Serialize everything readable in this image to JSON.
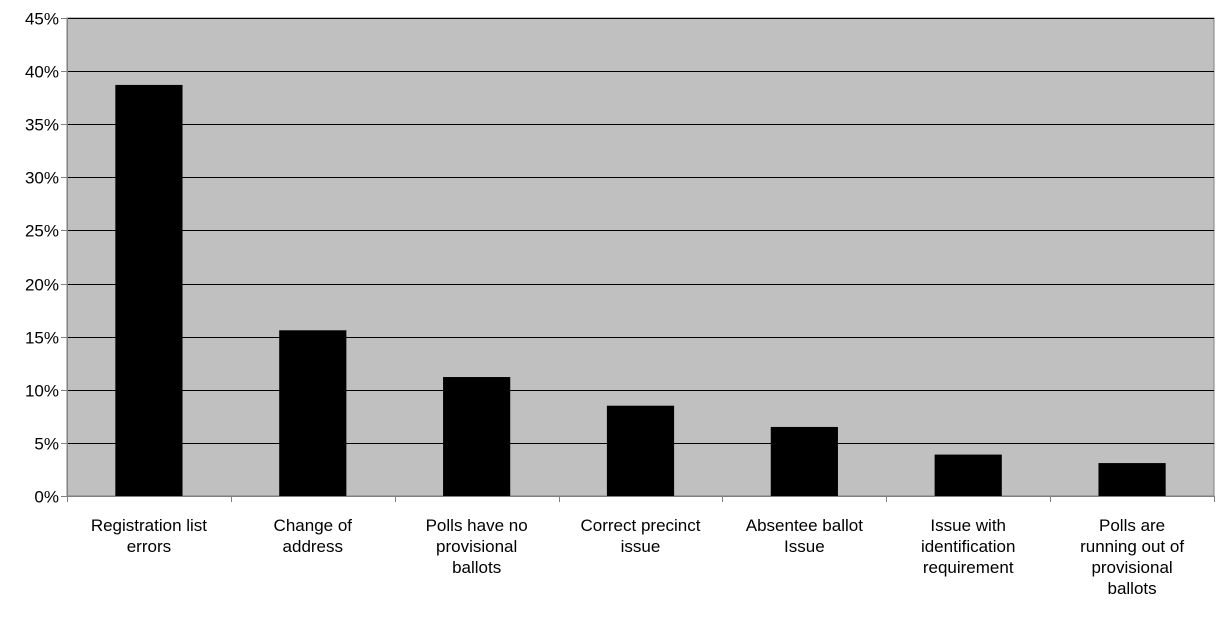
{
  "chart_data": {
    "type": "bar",
    "categories": [
      "Registration list errors",
      "Change of address",
      "Polls have no provisional ballots",
      "Correct precinct issue",
      "Absentee ballot Issue",
      "Issue with identification requirement",
      "Polls are running out of provisional ballots"
    ],
    "category_lines": [
      [
        "Registration list",
        "errors"
      ],
      [
        "Change of",
        "address"
      ],
      [
        "Polls have no",
        "provisional",
        "ballots"
      ],
      [
        "Correct precinct",
        "issue"
      ],
      [
        "Absentee ballot",
        "Issue"
      ],
      [
        "Issue with",
        "identification",
        "requirement"
      ],
      [
        "Polls are",
        "running out of",
        "provisional",
        "ballots"
      ]
    ],
    "values": [
      38.7,
      15.6,
      11.2,
      8.5,
      6.5,
      3.9,
      3.1
    ],
    "ylim": [
      0,
      45
    ],
    "y_ticks": [
      0,
      5,
      10,
      15,
      20,
      25,
      30,
      35,
      40,
      45
    ],
    "y_tick_format": "percent",
    "title": "",
    "xlabel": "",
    "ylabel": "",
    "grid": true,
    "colors": {
      "plot_background": "#c0c0c0",
      "bar_fill": "#000000",
      "gridline": "#000000",
      "axis": "#808080"
    }
  }
}
